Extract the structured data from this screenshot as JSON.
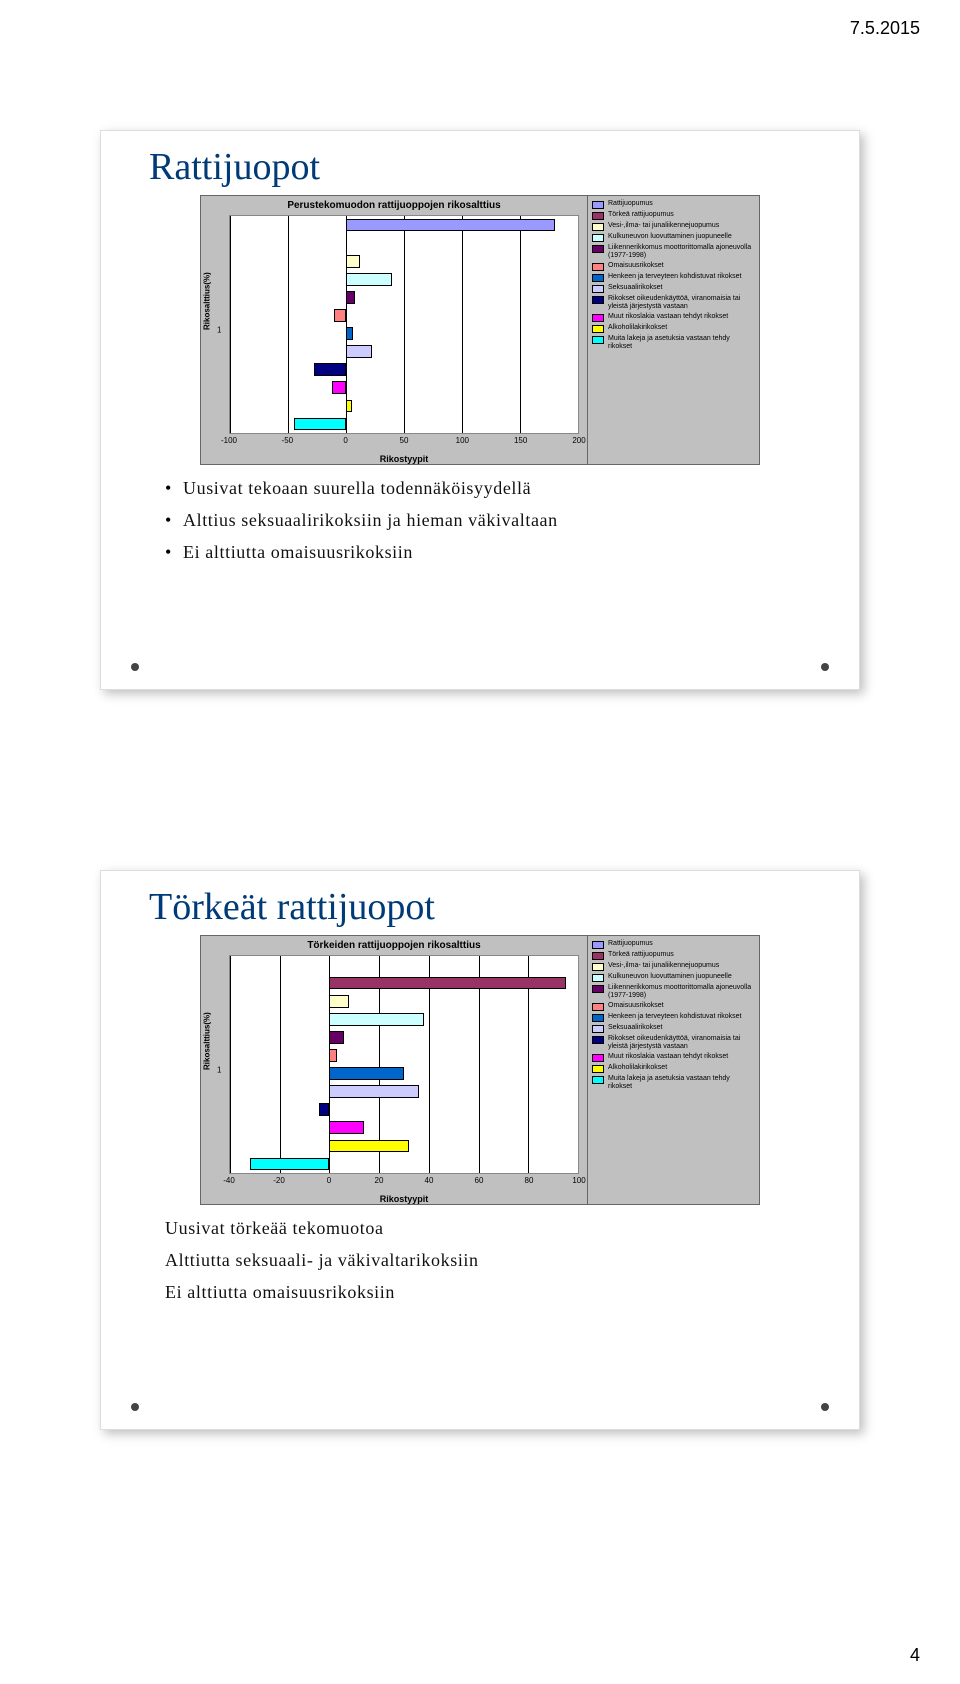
{
  "header_date": "7.5.2015",
  "page_number": "4",
  "colors": {
    "title": "#003b77",
    "panel_bg": "#ffffff",
    "chart_bg": "#c0c0c0",
    "plot_bg": "#ffffff",
    "grid": "#000000"
  },
  "legend": [
    {
      "label": "Rattijuopumus",
      "color": "#9999ff"
    },
    {
      "label": "Törkeä rattijuopumus",
      "color": "#993366"
    },
    {
      "label": "Vesi-,ilma- tai junaliikennejuopumus",
      "color": "#ffffcc"
    },
    {
      "label": "Kulkuneuvon luovuttaminen juopuneelle",
      "color": "#ccffff"
    },
    {
      "label": "Liikennerikkomus moottorittomalla ajoneuvolla (1977-1998)",
      "color": "#660066"
    },
    {
      "label": "Omaisuusrikokset",
      "color": "#ff8080"
    },
    {
      "label": "Henkeen ja terveyteen kohdistuvat rikokset",
      "color": "#0066cc"
    },
    {
      "label": "Seksuaalirikokset",
      "color": "#ccccff"
    },
    {
      "label": "Rikokset oikeudenkäyttöä, viranomaisia tai yleistä järjestystä vastaan",
      "color": "#000080"
    },
    {
      "label": "Muut rikoslakia vastaan tehdyt rikokset",
      "color": "#ff00ff"
    },
    {
      "label": "Alkoholilakirikokset",
      "color": "#ffff00"
    },
    {
      "label": "Muita lakeja ja asetuksia vastaan tehdy rikokset",
      "color": "#00ffff"
    }
  ],
  "chart1": {
    "title": "Perustekomuodon rattijuoppojen rikosalttius",
    "y_label": "Rikosalttius(%)",
    "x_label": "Rikostyypit",
    "x_min": -100,
    "x_max": 200,
    "x_step": 50,
    "y_tick": "1",
    "bars": [
      {
        "color": "#9999ff",
        "from": 0,
        "to": 180,
        "row": 0
      },
      {
        "color": "#ffffcc",
        "from": 0,
        "to": 12,
        "row": 2
      },
      {
        "color": "#ccffff",
        "from": 0,
        "to": 40,
        "row": 3
      },
      {
        "color": "#660066",
        "from": 0,
        "to": 8,
        "row": 4
      },
      {
        "color": "#ff8080",
        "from": -10,
        "to": 0,
        "row": 5
      },
      {
        "color": "#0066cc",
        "from": 0,
        "to": 6,
        "row": 6
      },
      {
        "color": "#ccccff",
        "from": 0,
        "to": 22,
        "row": 7
      },
      {
        "color": "#000080",
        "from": -28,
        "to": 0,
        "row": 8
      },
      {
        "color": "#ff00ff",
        "from": -12,
        "to": 0,
        "row": 9
      },
      {
        "color": "#ffff00",
        "from": 0,
        "to": 5,
        "row": 10
      },
      {
        "color": "#00ffff",
        "from": -45,
        "to": 0,
        "row": 11
      }
    ]
  },
  "chart2": {
    "title": "Törkeiden rattijuoppojen rikosalttius",
    "y_label": "Rikosalttius(%)",
    "x_label": "Rikostyypit",
    "x_min": -40,
    "x_max": 100,
    "x_step": 20,
    "y_tick": "1",
    "bars": [
      {
        "color": "#993366",
        "from": 0,
        "to": 95,
        "row": 1
      },
      {
        "color": "#ffffcc",
        "from": 0,
        "to": 8,
        "row": 2
      },
      {
        "color": "#ccffff",
        "from": 0,
        "to": 38,
        "row": 3
      },
      {
        "color": "#660066",
        "from": 0,
        "to": 6,
        "row": 4
      },
      {
        "color": "#ff8080",
        "from": 0,
        "to": 3,
        "row": 5
      },
      {
        "color": "#0066cc",
        "from": 0,
        "to": 30,
        "row": 6
      },
      {
        "color": "#ccccff",
        "from": 0,
        "to": 36,
        "row": 7
      },
      {
        "color": "#000080",
        "from": -4,
        "to": 0,
        "row": 8
      },
      {
        "color": "#ff00ff",
        "from": 0,
        "to": 14,
        "row": 9
      },
      {
        "color": "#ffff00",
        "from": 0,
        "to": 32,
        "row": 10
      },
      {
        "color": "#00ffff",
        "from": -32,
        "to": 0,
        "row": 11
      }
    ]
  },
  "panel1": {
    "title": "Rattijuopot",
    "bullets": [
      "Uusivat tekoaan suurella todennäköisyydellä",
      "Alttius seksuaalirikoksiin ja hieman väkivaltaan",
      "Ei alttiutta omaisuusrikoksiin"
    ]
  },
  "panel2": {
    "title": "Törkeät rattijuopot",
    "bullets": [
      "Uusivat törkeää tekomuotoa",
      "Alttiutta seksuaali- ja väkivaltarikoksiin",
      "Ei alttiutta omaisuusrikoksiin"
    ]
  }
}
